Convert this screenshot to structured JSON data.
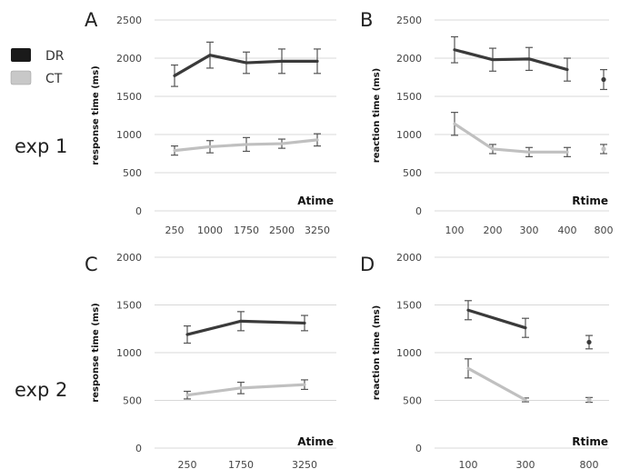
{
  "legend": {
    "items": [
      {
        "label": "DR",
        "color": "#1a1a1a"
      },
      {
        "label": "CT",
        "color": "#c8c8c8"
      }
    ]
  },
  "rows": [
    {
      "label": "exp 1"
    },
    {
      "label": "exp 2"
    }
  ],
  "colors": {
    "DR": "#3a3a3a",
    "CT": "#c0c0c0",
    "grid": "#d8d8d8",
    "errorbar": "#555555"
  },
  "chart_data": [
    {
      "panel": "A",
      "type": "line",
      "ylabel": "response time (ms)",
      "xlabel": "Atime",
      "categories": [
        "250",
        "1000",
        "1750",
        "2500",
        "3250"
      ],
      "ylim": [
        0,
        2500
      ],
      "yticks": [
        0,
        500,
        1000,
        1500,
        2000,
        2500
      ],
      "grid": true,
      "series": [
        {
          "name": "DR",
          "values": [
            1770,
            2040,
            1940,
            1960,
            1960
          ],
          "errors": [
            140,
            170,
            140,
            160,
            160
          ],
          "segments": [
            [
              0,
              1,
              2,
              3,
              4
            ]
          ]
        },
        {
          "name": "CT",
          "values": [
            790,
            840,
            870,
            880,
            930
          ],
          "errors": [
            60,
            80,
            90,
            60,
            80
          ],
          "segments": [
            [
              0,
              1,
              2,
              3,
              4
            ]
          ]
        }
      ]
    },
    {
      "panel": "B",
      "type": "line",
      "ylabel": "reaction time (ms)",
      "xlabel": "Rtime",
      "categories": [
        "100",
        "200",
        "300",
        "400",
        "800"
      ],
      "ylim": [
        0,
        2500
      ],
      "yticks": [
        0,
        500,
        1000,
        1500,
        2000,
        2500
      ],
      "grid": true,
      "series": [
        {
          "name": "DR",
          "values": [
            2110,
            1980,
            1990,
            1850,
            1720
          ],
          "errors": [
            170,
            150,
            150,
            150,
            130
          ],
          "segments": [
            [
              0,
              1,
              2,
              3
            ],
            [
              4
            ]
          ]
        },
        {
          "name": "CT",
          "values": [
            1140,
            810,
            770,
            770,
            810
          ],
          "errors": [
            150,
            60,
            60,
            60,
            60
          ],
          "segments": [
            [
              0,
              1,
              2,
              3
            ],
            [
              4
            ]
          ]
        }
      ]
    },
    {
      "panel": "C",
      "type": "line",
      "ylabel": "response time (ms)",
      "xlabel": "Atime",
      "categories": [
        "250",
        "1750",
        "3250"
      ],
      "ylim": [
        0,
        2000
      ],
      "yticks": [
        0,
        500,
        1000,
        1500,
        2000
      ],
      "grid": true,
      "series": [
        {
          "name": "DR",
          "values": [
            1190,
            1330,
            1310
          ],
          "errors": [
            90,
            100,
            80
          ],
          "segments": [
            [
              0,
              1,
              2
            ]
          ]
        },
        {
          "name": "CT",
          "values": [
            555,
            630,
            665
          ],
          "errors": [
            40,
            60,
            50
          ],
          "segments": [
            [
              0,
              1,
              2
            ]
          ]
        }
      ]
    },
    {
      "panel": "D",
      "type": "line",
      "ylabel": "reaction time (ms)",
      "xlabel": "Rtime",
      "categories": [
        "100",
        "300",
        "800"
      ],
      "ylim": [
        0,
        2000
      ],
      "yticks": [
        0,
        500,
        1000,
        1500,
        2000
      ],
      "grid": true,
      "series": [
        {
          "name": "DR",
          "values": [
            1445,
            1260,
            1110
          ],
          "errors": [
            100,
            100,
            70
          ],
          "segments": [
            [
              0,
              1
            ],
            [
              2
            ]
          ]
        },
        {
          "name": "CT",
          "values": [
            835,
            505,
            505
          ],
          "errors": [
            100,
            20,
            25
          ],
          "segments": [
            [
              0,
              1
            ],
            [
              2
            ]
          ]
        }
      ]
    }
  ]
}
